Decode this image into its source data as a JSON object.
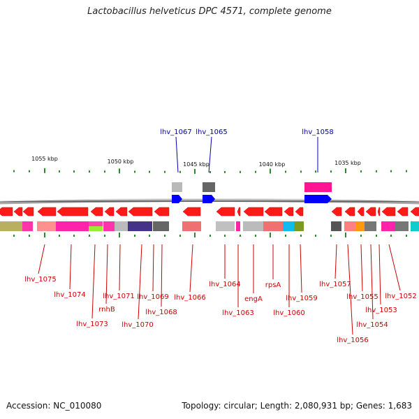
{
  "title": "Lactobacillus helveticus DPC 4571, complete genome",
  "footer": {
    "accession": "Accession: NC_010080",
    "topology": "Topology: circular; Length: 2,080,931 bp; Genes: 1,683"
  },
  "colors": {
    "red_label": "#cc0000",
    "blue_label": "#0000aa",
    "tick": "#2a8a2a"
  },
  "kbp_labels": [
    {
      "text": "1055 kbp",
      "pos": 1055
    },
    {
      "text": "1050 kbp",
      "pos": 1050
    },
    {
      "text": "1045 kbp",
      "pos": 1045
    },
    {
      "text": "1040 kbp",
      "pos": 1040
    },
    {
      "text": "1035 kbp",
      "pos": 1035
    }
  ],
  "genes_top": [
    {
      "name": "lhv_1067",
      "color": "#0000aa"
    },
    {
      "name": "lhv_1065",
      "color": "#0000aa"
    },
    {
      "name": "lhv_1058",
      "color": "#0000aa"
    }
  ],
  "genes_bottom": [
    "lhv_1075",
    "lhv_1074",
    "lhv_1073",
    "rnhB",
    "lhv_1071",
    "lhv_1070",
    "lhv_1069",
    "lhv_1068",
    "lhv_1066",
    "lhv_1064",
    "lhv_1063",
    "engA",
    "rpsA",
    "lhv_1060",
    "lhv_1059",
    "lhv_1057",
    "lhv_1056",
    "lhv_1055",
    "lhv_1054",
    "lhv_1053",
    "lhv_1052"
  ]
}
